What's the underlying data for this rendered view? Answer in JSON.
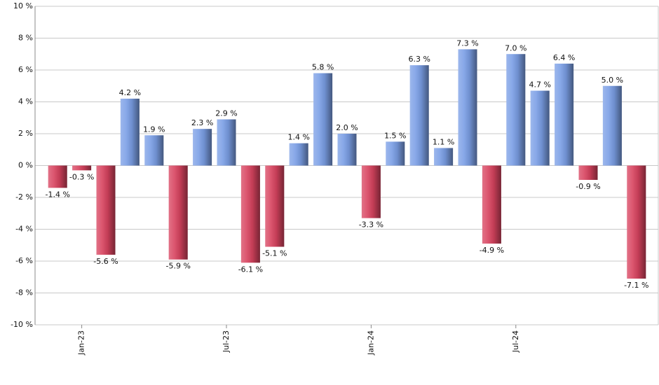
{
  "chart_data": {
    "type": "bar",
    "categories": [
      null,
      "Jan-23",
      null,
      null,
      null,
      null,
      null,
      "Jul-23",
      null,
      null,
      null,
      null,
      null,
      "Jan-24",
      null,
      null,
      null,
      null,
      null,
      "Jul-24",
      null,
      null,
      null,
      null,
      null
    ],
    "values": [
      -1.4,
      -0.3,
      -5.6,
      4.2,
      1.9,
      -5.9,
      2.3,
      2.9,
      -6.1,
      -5.1,
      1.4,
      5.8,
      2.0,
      -3.3,
      1.5,
      6.3,
      1.1,
      7.3,
      -4.9,
      7.0,
      4.7,
      6.4,
      -0.9,
      5.0,
      -7.1
    ],
    "value_labels": [
      "-1.4 %",
      "-0.3 %",
      "-5.6 %",
      "4.2 %",
      "1.9 %",
      "-5.9 %",
      "2.3 %",
      "2.9 %",
      "-6.1 %",
      "-5.1 %",
      "1.4 %",
      "5.8 %",
      "2.0 %",
      "-3.3 %",
      "1.5 %",
      "6.3 %",
      "1.1 %",
      "7.3 %",
      "-4.9 %",
      "7.0 %",
      "4.7 %",
      "6.4 %",
      "-0.9 %",
      "5.0 %",
      "-7.1 %"
    ],
    "colors": {
      "positive": "#7b9fe6",
      "negative": "#d8435f"
    },
    "ylim": [
      -10,
      10
    ],
    "yticks": [
      {
        "value": -10,
        "label": "-10 %"
      },
      {
        "value": -8,
        "label": "-8 %"
      },
      {
        "value": -6,
        "label": "-6 %"
      },
      {
        "value": -4,
        "label": "-4 %"
      },
      {
        "value": -2,
        "label": "-2 %"
      },
      {
        "value": 0,
        "label": "0 %"
      },
      {
        "value": 2,
        "label": "2 %"
      },
      {
        "value": 4,
        "label": "4 %"
      },
      {
        "value": 6,
        "label": "6 %"
      },
      {
        "value": 8,
        "label": "8 %"
      },
      {
        "value": 10,
        "label": "10 %"
      }
    ],
    "grid": true
  }
}
